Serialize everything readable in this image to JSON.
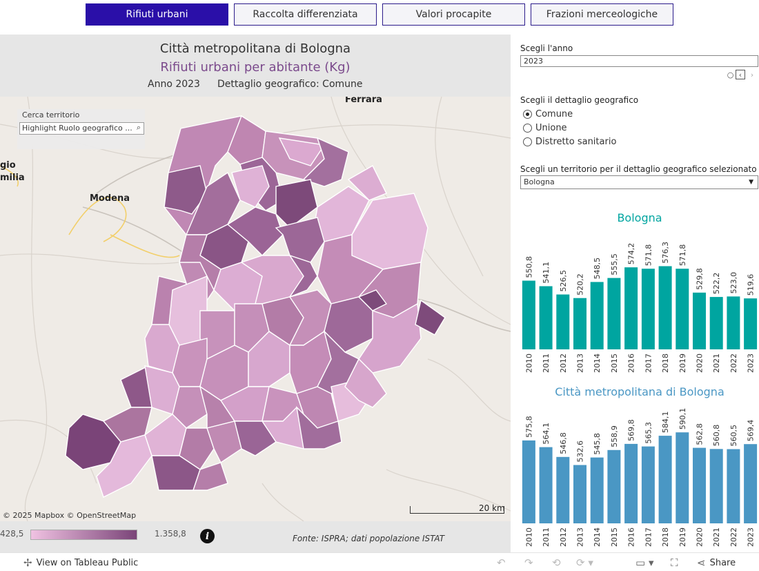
{
  "nav": {
    "tabs": [
      {
        "label": "Rifiuti urbani",
        "active": true
      },
      {
        "label": "Raccolta differenziata",
        "active": false
      },
      {
        "label": "Valori procapite",
        "active": false
      },
      {
        "label": "Frazioni merceologiche",
        "active": false
      }
    ]
  },
  "header": {
    "title": "Città metropolitana di Bologna",
    "subtitle": "Rifiuti urbani per abitante (Kg)",
    "anno": "Anno 2023",
    "dettaglio": "Dettaglio geografico: Comune"
  },
  "map": {
    "search_label": "Cerca territorio",
    "search_placeholder": "Highlight Ruolo geografico ...",
    "cities": [
      "Ferrara",
      "gio",
      "milia",
      "Modena"
    ],
    "copyright": "© 2025 Mapbox  © OpenStreetMap",
    "scale_label": "20 km",
    "colors": {
      "low": "#f0c2e2",
      "high": "#7a4478"
    }
  },
  "legend": {
    "min": "428,5",
    "max": "1.358,8"
  },
  "source": "Fonte: ISPRA; dati popolazione ISTAT",
  "controls": {
    "year_label": "Scegli l'anno",
    "year_value": "2023",
    "detail_label": "Scegli il dettaglio geografico",
    "detail_options": [
      {
        "label": "Comune",
        "checked": true
      },
      {
        "label": "Unione",
        "checked": false
      },
      {
        "label": "Distretto sanitario",
        "checked": false
      }
    ],
    "territory_label": "Scegli un territorio per il dettaglio geografico selezionato",
    "territory_value": "Bologna"
  },
  "chart_data": [
    {
      "type": "bar",
      "title": "Bologna",
      "color": "#00a5a0",
      "categories": [
        "2010",
        "2011",
        "2012",
        "2013",
        "2014",
        "2015",
        "2016",
        "2017",
        "2018",
        "2019",
        "2020",
        "2021",
        "2022",
        "2023"
      ],
      "values": [
        550.8,
        541.1,
        526.5,
        520.2,
        548.5,
        555.5,
        574.2,
        571.8,
        576.3,
        571.8,
        529.8,
        522.2,
        523.0,
        519.6
      ],
      "labels": [
        "550,8",
        "541,1",
        "526,5",
        "520,2",
        "548,5",
        "555,5",
        "574,2",
        "571,8",
        "576,3",
        "571,8",
        "529,8",
        "522,2",
        "523,0",
        "519,6"
      ]
    },
    {
      "type": "bar",
      "title": "Città metropolitana di Bologna",
      "color": "#4a97c4",
      "categories": [
        "2010",
        "2011",
        "2012",
        "2013",
        "2014",
        "2015",
        "2016",
        "2017",
        "2018",
        "2019",
        "2020",
        "2021",
        "2022",
        "2023"
      ],
      "values": [
        575.8,
        564.1,
        546.8,
        532.6,
        545.8,
        558.9,
        569.8,
        565.3,
        584.1,
        590.1,
        562.8,
        560.8,
        560.5,
        569.4
      ],
      "labels": [
        "575,8",
        "564,1",
        "546,8",
        "532,6",
        "545,8",
        "558,9",
        "569,8",
        "565,3",
        "584,1",
        "590,1",
        "562,8",
        "560,8",
        "560,5",
        "569,4"
      ]
    }
  ],
  "toolbar": {
    "view_label": "View on Tableau Public",
    "share_label": "Share"
  }
}
